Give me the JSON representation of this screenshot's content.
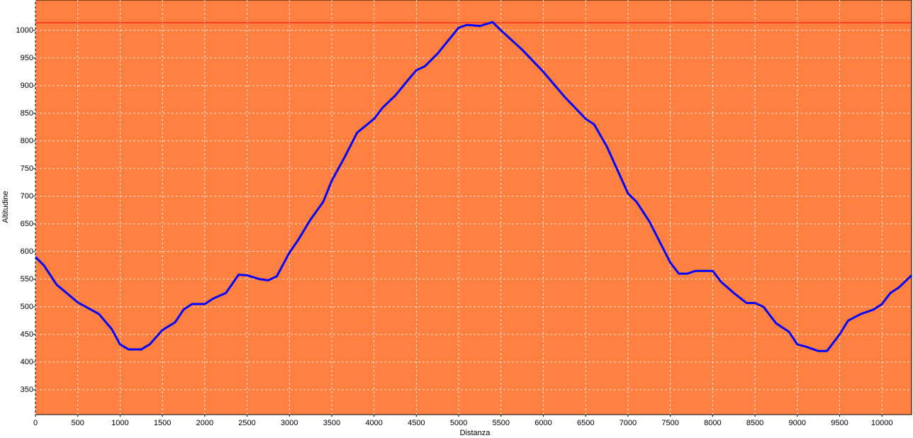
{
  "chart_data": {
    "type": "line",
    "x_label": "Distanza",
    "y_label": "Altitudine",
    "background": "#ff8040",
    "grid": true,
    "grid_color": "#ffffff",
    "xlim": [
      0,
      10350
    ],
    "ylim": [
      305,
      1055
    ],
    "xticks": [
      0,
      500,
      1000,
      1500,
      2000,
      2500,
      3000,
      3500,
      4000,
      4500,
      5000,
      5500,
      6000,
      6500,
      7000,
      7500,
      8000,
      8500,
      9000,
      9500,
      10000
    ],
    "yticks": [
      350,
      400,
      450,
      500,
      550,
      600,
      650,
      700,
      750,
      800,
      850,
      900,
      950,
      1000
    ],
    "reference_line": {
      "value": 1014,
      "color": "#ff0000"
    },
    "x": [
      0,
      100,
      250,
      500,
      750,
      900,
      1000,
      1100,
      1250,
      1350,
      1500,
      1650,
      1750,
      1850,
      2000,
      2100,
      2250,
      2400,
      2500,
      2650,
      2750,
      2850,
      3000,
      3100,
      3250,
      3400,
      3500,
      3650,
      3800,
      4000,
      4100,
      4250,
      4400,
      4500,
      4600,
      4750,
      5000,
      5100,
      5250,
      5400,
      5500,
      5750,
      6000,
      6250,
      6500,
      6600,
      6750,
      7000,
      7100,
      7250,
      7400,
      7500,
      7600,
      7700,
      7800,
      8000,
      8100,
      8250,
      8400,
      8500,
      8600,
      8750,
      8900,
      9000,
      9100,
      9250,
      9350,
      9500,
      9600,
      9750,
      9900,
      10000,
      10100,
      10200,
      10350
    ],
    "series": [
      {
        "color": "#0000ff",
        "values": [
          590,
          575,
          540,
          508,
          487,
          460,
          432,
          423,
          423,
          432,
          458,
          472,
          495,
          505,
          505,
          515,
          525,
          558,
          557,
          550,
          548,
          555,
          598,
          620,
          658,
          690,
          728,
          770,
          815,
          840,
          860,
          882,
          910,
          928,
          935,
          958,
          1005,
          1010,
          1008,
          1015,
          1000,
          965,
          925,
          880,
          840,
          830,
          790,
          705,
          690,
          655,
          610,
          580,
          560,
          560,
          565,
          565,
          545,
          525,
          507,
          507,
          500,
          470,
          455,
          432,
          428,
          420,
          420,
          450,
          475,
          487,
          495,
          505,
          525,
          535,
          557
        ]
      }
    ]
  }
}
